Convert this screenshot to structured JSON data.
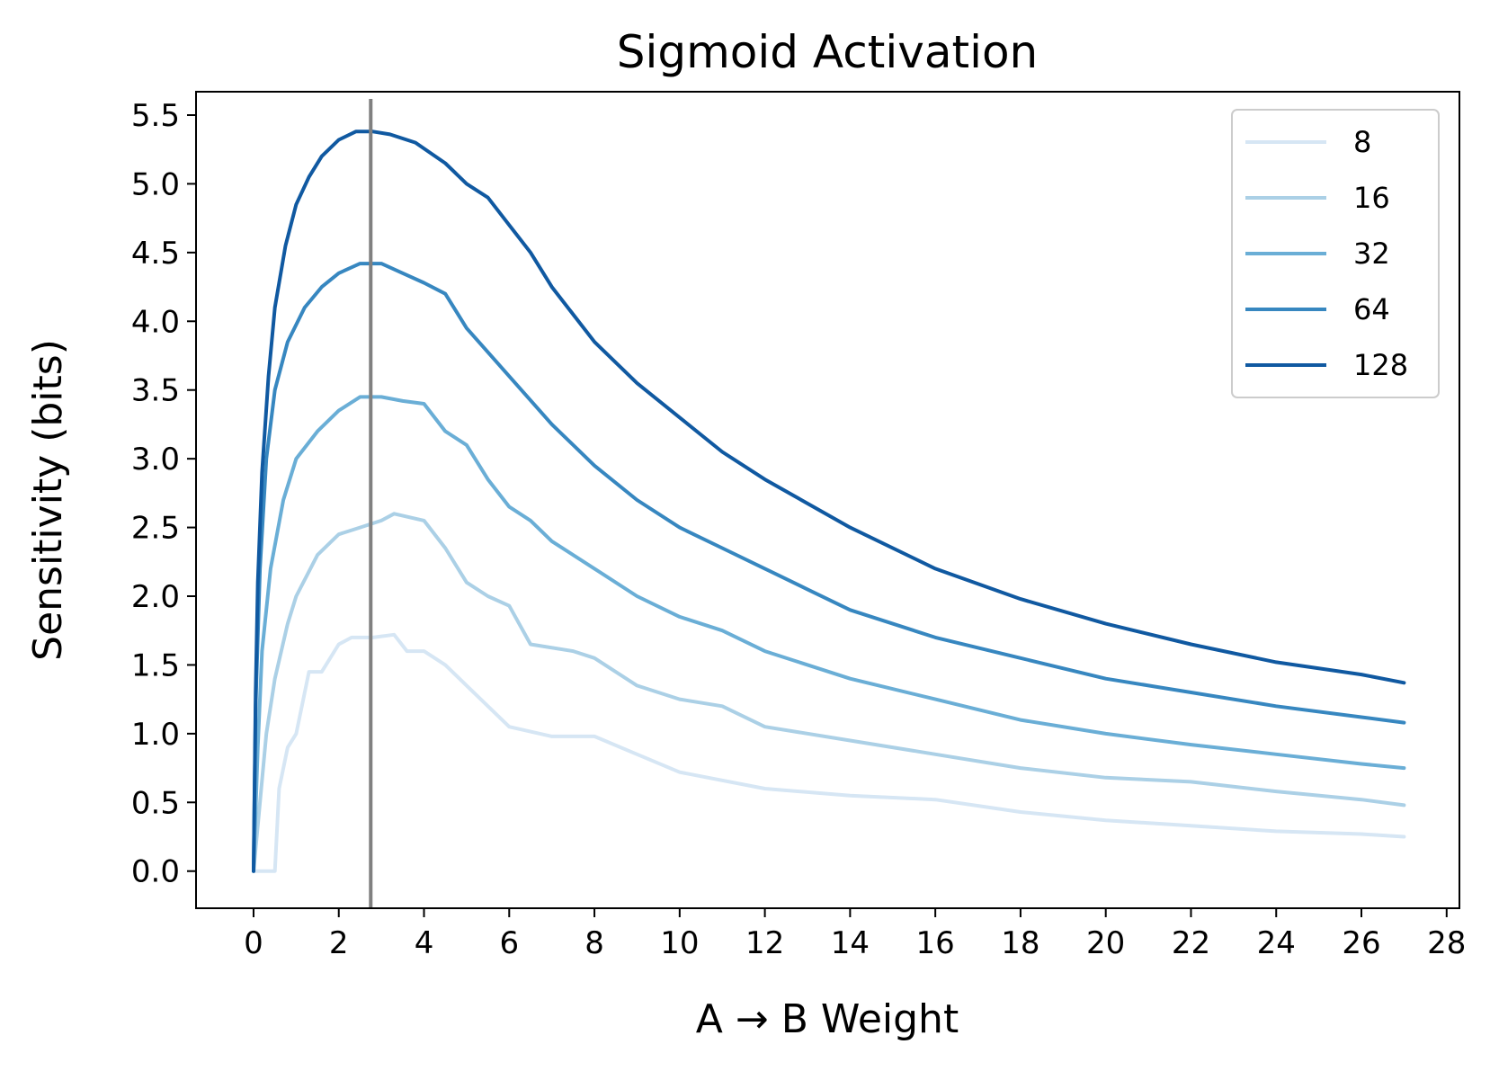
{
  "chart_data": {
    "type": "line",
    "title": "Sigmoid Activation",
    "xlabel": "A → B Weight",
    "ylabel": "Sensitivity (bits)",
    "xlim": [
      -1.35,
      28.3
    ],
    "ylim": [
      -0.27,
      5.67
    ],
    "xticks": [
      0,
      2,
      4,
      6,
      8,
      10,
      12,
      14,
      16,
      18,
      20,
      22,
      24,
      26,
      28
    ],
    "yticks": [
      0.0,
      0.5,
      1.0,
      1.5,
      2.0,
      2.5,
      3.0,
      3.5,
      4.0,
      4.5,
      5.0,
      5.5
    ],
    "ytick_labels": [
      "0.0",
      "0.5",
      "1.0",
      "1.5",
      "2.0",
      "2.5",
      "3.0",
      "3.5",
      "4.0",
      "4.5",
      "5.0",
      "5.5"
    ],
    "grid": false,
    "legend_position": "top-right",
    "vertical_line": {
      "x": 2.75,
      "color": "#808080"
    },
    "series": [
      {
        "name": "8",
        "color": "#d6e6f4",
        "x": [
          0,
          0.3,
          0.5,
          0.6,
          0.8,
          1.0,
          1.3,
          1.6,
          2.0,
          2.3,
          2.8,
          3.3,
          3.6,
          4.0,
          4.5,
          5.0,
          5.5,
          6.0,
          7.0,
          8.0,
          9.0,
          10,
          12,
          14,
          16,
          18,
          20,
          22,
          24,
          26,
          27
        ],
        "y": [
          0,
          0,
          0,
          0.6,
          0.9,
          1.0,
          1.45,
          1.45,
          1.65,
          1.7,
          1.7,
          1.72,
          1.6,
          1.6,
          1.5,
          1.35,
          1.2,
          1.05,
          0.98,
          0.98,
          0.85,
          0.72,
          0.6,
          0.55,
          0.52,
          0.43,
          0.37,
          0.33,
          0.29,
          0.27,
          0.25
        ]
      },
      {
        "name": "16",
        "color": "#abd0e6",
        "x": [
          0,
          0.15,
          0.3,
          0.5,
          0.8,
          1.0,
          1.5,
          2.0,
          2.5,
          3.0,
          3.3,
          4.0,
          4.5,
          5.0,
          5.5,
          6.0,
          6.5,
          7.5,
          8.0,
          9.0,
          10,
          11,
          12,
          14,
          16,
          18,
          20,
          22,
          24,
          26,
          27
        ],
        "y": [
          0,
          0.5,
          1.0,
          1.4,
          1.8,
          2.0,
          2.3,
          2.45,
          2.5,
          2.55,
          2.6,
          2.55,
          2.35,
          2.1,
          2.0,
          1.93,
          1.65,
          1.6,
          1.55,
          1.35,
          1.25,
          1.2,
          1.05,
          0.95,
          0.85,
          0.75,
          0.68,
          0.65,
          0.58,
          0.52,
          0.48
        ]
      },
      {
        "name": "32",
        "color": "#6aaed6",
        "x": [
          0,
          0.1,
          0.2,
          0.4,
          0.7,
          1.0,
          1.5,
          2.0,
          2.5,
          3.0,
          3.5,
          4.0,
          4.5,
          5.0,
          5.5,
          6.0,
          6.5,
          7.0,
          8.0,
          9.0,
          10,
          11,
          12,
          14,
          16,
          18,
          20,
          22,
          24,
          26,
          27
        ],
        "y": [
          0,
          0.9,
          1.6,
          2.2,
          2.7,
          3.0,
          3.2,
          3.35,
          3.45,
          3.45,
          3.42,
          3.4,
          3.2,
          3.1,
          2.85,
          2.65,
          2.55,
          2.4,
          2.2,
          2.0,
          1.85,
          1.75,
          1.6,
          1.4,
          1.25,
          1.1,
          1.0,
          0.92,
          0.85,
          0.78,
          0.75
        ]
      },
      {
        "name": "64",
        "color": "#3787c0",
        "x": [
          0,
          0.05,
          0.15,
          0.3,
          0.5,
          0.8,
          1.2,
          1.6,
          2.0,
          2.5,
          3.0,
          3.5,
          4.0,
          4.5,
          5.0,
          6.0,
          7.0,
          8.0,
          9.0,
          10,
          11,
          12,
          13,
          14,
          16,
          18,
          20,
          22,
          24,
          26,
          27
        ],
        "y": [
          0,
          1.2,
          2.2,
          3.0,
          3.5,
          3.85,
          4.1,
          4.25,
          4.35,
          4.42,
          4.42,
          4.35,
          4.28,
          4.2,
          3.95,
          3.6,
          3.25,
          2.95,
          2.7,
          2.5,
          2.35,
          2.2,
          2.05,
          1.9,
          1.7,
          1.55,
          1.4,
          1.3,
          1.2,
          1.12,
          1.08
        ]
      },
      {
        "name": "128",
        "color": "#1059a1",
        "x": [
          0,
          0.05,
          0.1,
          0.2,
          0.35,
          0.5,
          0.75,
          1.0,
          1.3,
          1.6,
          2.0,
          2.4,
          2.8,
          3.2,
          3.8,
          4.5,
          5.0,
          5.5,
          6.0,
          6.5,
          7.0,
          8.0,
          9.0,
          10,
          11,
          12,
          14,
          16,
          18,
          20,
          22,
          24,
          26,
          27
        ],
        "y": [
          0,
          1.3,
          2.1,
          2.9,
          3.6,
          4.1,
          4.55,
          4.85,
          5.05,
          5.2,
          5.32,
          5.38,
          5.38,
          5.36,
          5.3,
          5.15,
          5.0,
          4.9,
          4.7,
          4.5,
          4.25,
          3.85,
          3.55,
          3.3,
          3.05,
          2.85,
          2.5,
          2.2,
          1.98,
          1.8,
          1.65,
          1.52,
          1.43,
          1.37
        ]
      }
    ]
  }
}
